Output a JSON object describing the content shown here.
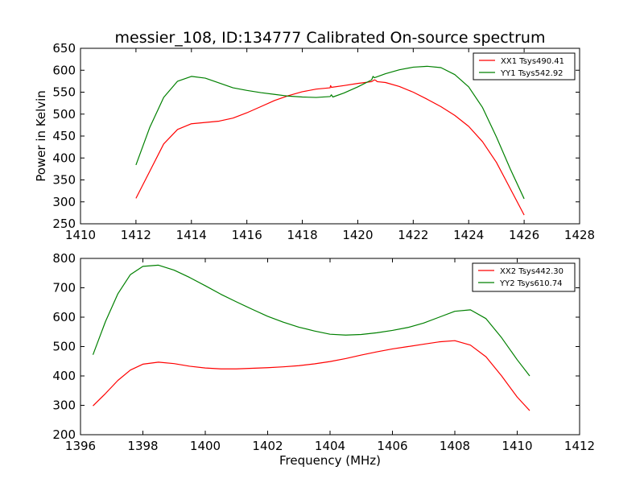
{
  "title": "messier_108, ID:134777 Calibrated On-source spectrum",
  "colors": {
    "red": "#ff0000",
    "green": "#008000",
    "frame": "#000000",
    "background": "#ffffff"
  },
  "chart_data": [
    {
      "type": "line",
      "panel": "top",
      "title": "messier_108, ID:134777 Calibrated On-source spectrum",
      "xlabel": "",
      "ylabel": "Power in Kelvin",
      "xlim": [
        1410,
        1428
      ],
      "ylim": [
        250,
        650
      ],
      "xticks": [
        1410,
        1412,
        1414,
        1416,
        1418,
        1420,
        1422,
        1424,
        1426,
        1428
      ],
      "yticks": [
        250,
        300,
        350,
        400,
        450,
        500,
        550,
        600,
        650
      ],
      "grid": false,
      "legend_position": "top-right",
      "series": [
        {
          "name": "XX1 Tsys490.41",
          "color": "#ff0000",
          "x": [
            1412.0,
            1412.5,
            1413.0,
            1413.5,
            1414.0,
            1414.5,
            1415.0,
            1415.5,
            1416.0,
            1416.5,
            1417.0,
            1417.5,
            1418.0,
            1418.5,
            1419.0,
            1419.02,
            1419.05,
            1419.5,
            1420.0,
            1420.5,
            1420.6,
            1420.65,
            1420.7,
            1421.0,
            1421.5,
            1422.0,
            1422.5,
            1423.0,
            1423.5,
            1424.0,
            1424.5,
            1425.0,
            1425.5,
            1426.0
          ],
          "y": [
            308,
            370,
            432,
            465,
            478,
            481,
            484,
            491,
            503,
            517,
            531,
            542,
            551,
            557,
            560,
            565,
            561,
            565,
            570,
            574,
            578,
            577,
            574,
            572,
            563,
            550,
            534,
            517,
            497,
            472,
            437,
            390,
            330,
            270
          ]
        },
        {
          "name": "YY1 Tsys542.92",
          "color": "#008000",
          "x": [
            1412.0,
            1412.5,
            1413.0,
            1413.5,
            1414.0,
            1414.5,
            1415.0,
            1415.5,
            1416.0,
            1416.5,
            1417.0,
            1417.5,
            1418.0,
            1418.5,
            1419.0,
            1419.05,
            1419.1,
            1419.5,
            1420.0,
            1420.5,
            1420.55,
            1420.6,
            1421.0,
            1421.5,
            1422.0,
            1422.5,
            1423.0,
            1423.5,
            1424.0,
            1424.5,
            1425.0,
            1425.5,
            1426.0
          ],
          "y": [
            384,
            470,
            538,
            575,
            586,
            582,
            571,
            560,
            554,
            549,
            545,
            541,
            539,
            538,
            540,
            544,
            539,
            548,
            562,
            578,
            586,
            583,
            592,
            601,
            607,
            609,
            606,
            590,
            562,
            515,
            448,
            375,
            307
          ]
        }
      ]
    },
    {
      "type": "line",
      "panel": "bottom",
      "title": "",
      "xlabel": "Frequency (MHz)",
      "ylabel": "",
      "xlim": [
        1396,
        1412
      ],
      "ylim": [
        200,
        800
      ],
      "xticks": [
        1396,
        1398,
        1400,
        1402,
        1404,
        1406,
        1408,
        1410,
        1412
      ],
      "yticks": [
        200,
        300,
        400,
        500,
        600,
        700,
        800
      ],
      "grid": false,
      "legend_position": "top-right",
      "series": [
        {
          "name": "XX2 Tsys442.30",
          "color": "#ff0000",
          "x": [
            1396.4,
            1396.8,
            1397.2,
            1397.6,
            1398.0,
            1398.5,
            1399.0,
            1399.5,
            1400.0,
            1400.5,
            1401.0,
            1401.5,
            1402.0,
            1402.5,
            1403.0,
            1403.5,
            1404.0,
            1404.5,
            1405.0,
            1405.5,
            1406.0,
            1406.5,
            1407.0,
            1407.5,
            1408.0,
            1408.5,
            1409.0,
            1409.5,
            1410.0,
            1410.4
          ],
          "y": [
            298,
            340,
            385,
            420,
            440,
            447,
            442,
            433,
            427,
            424,
            424,
            426,
            428,
            431,
            435,
            441,
            449,
            459,
            471,
            482,
            492,
            500,
            508,
            516,
            520,
            505,
            465,
            400,
            328,
            282
          ]
        },
        {
          "name": "YY2 Tsys610.74",
          "color": "#008000",
          "x": [
            1396.4,
            1396.8,
            1397.2,
            1397.6,
            1398.0,
            1398.5,
            1399.0,
            1399.5,
            1400.0,
            1400.5,
            1401.0,
            1401.5,
            1402.0,
            1402.5,
            1403.0,
            1403.5,
            1404.0,
            1404.5,
            1405.0,
            1405.5,
            1406.0,
            1406.5,
            1407.0,
            1407.5,
            1408.0,
            1408.5,
            1409.0,
            1409.5,
            1410.0,
            1410.4
          ],
          "y": [
            472,
            585,
            680,
            745,
            773,
            777,
            760,
            735,
            707,
            678,
            652,
            627,
            603,
            583,
            566,
            553,
            542,
            539,
            541,
            547,
            555,
            565,
            580,
            600,
            620,
            625,
            595,
            530,
            455,
            400
          ]
        }
      ]
    }
  ]
}
